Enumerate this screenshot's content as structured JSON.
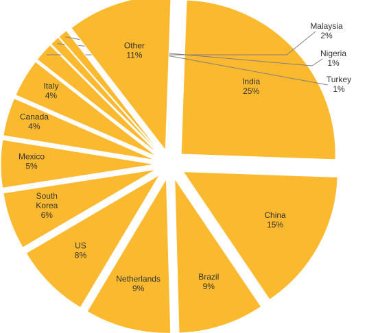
{
  "chart_data": {
    "type": "pie",
    "title": "",
    "exploded": true,
    "slice_color": "#FBB92F",
    "categories": [
      "India",
      "China",
      "Brazil",
      "Netherlands",
      "US",
      "South Korea",
      "Mexico",
      "Canada",
      "Italy",
      "Malaysia",
      "Nigeria",
      "Turkey",
      "Other"
    ],
    "values": [
      25,
      15,
      9,
      9,
      8,
      6,
      5,
      4,
      4,
      2,
      1,
      1,
      11
    ],
    "labels": [
      {
        "name": "India",
        "pct": "25%"
      },
      {
        "name": "China",
        "pct": "15%"
      },
      {
        "name": "Brazil",
        "pct": "9%"
      },
      {
        "name": "Netherlands",
        "pct": "9%"
      },
      {
        "name": "US",
        "pct": "8%"
      },
      {
        "name": [
          "South",
          "Korea"
        ],
        "pct": "6%"
      },
      {
        "name": "Mexico",
        "pct": "5%"
      },
      {
        "name": "Canada",
        "pct": "4%"
      },
      {
        "name": "Italy",
        "pct": "4%"
      },
      {
        "name": "Malaysia",
        "pct": "2%"
      },
      {
        "name": "Nigeria",
        "pct": "1%"
      },
      {
        "name": "Turkey",
        "pct": "1%"
      },
      {
        "name": "Other",
        "pct": "11%"
      }
    ]
  }
}
